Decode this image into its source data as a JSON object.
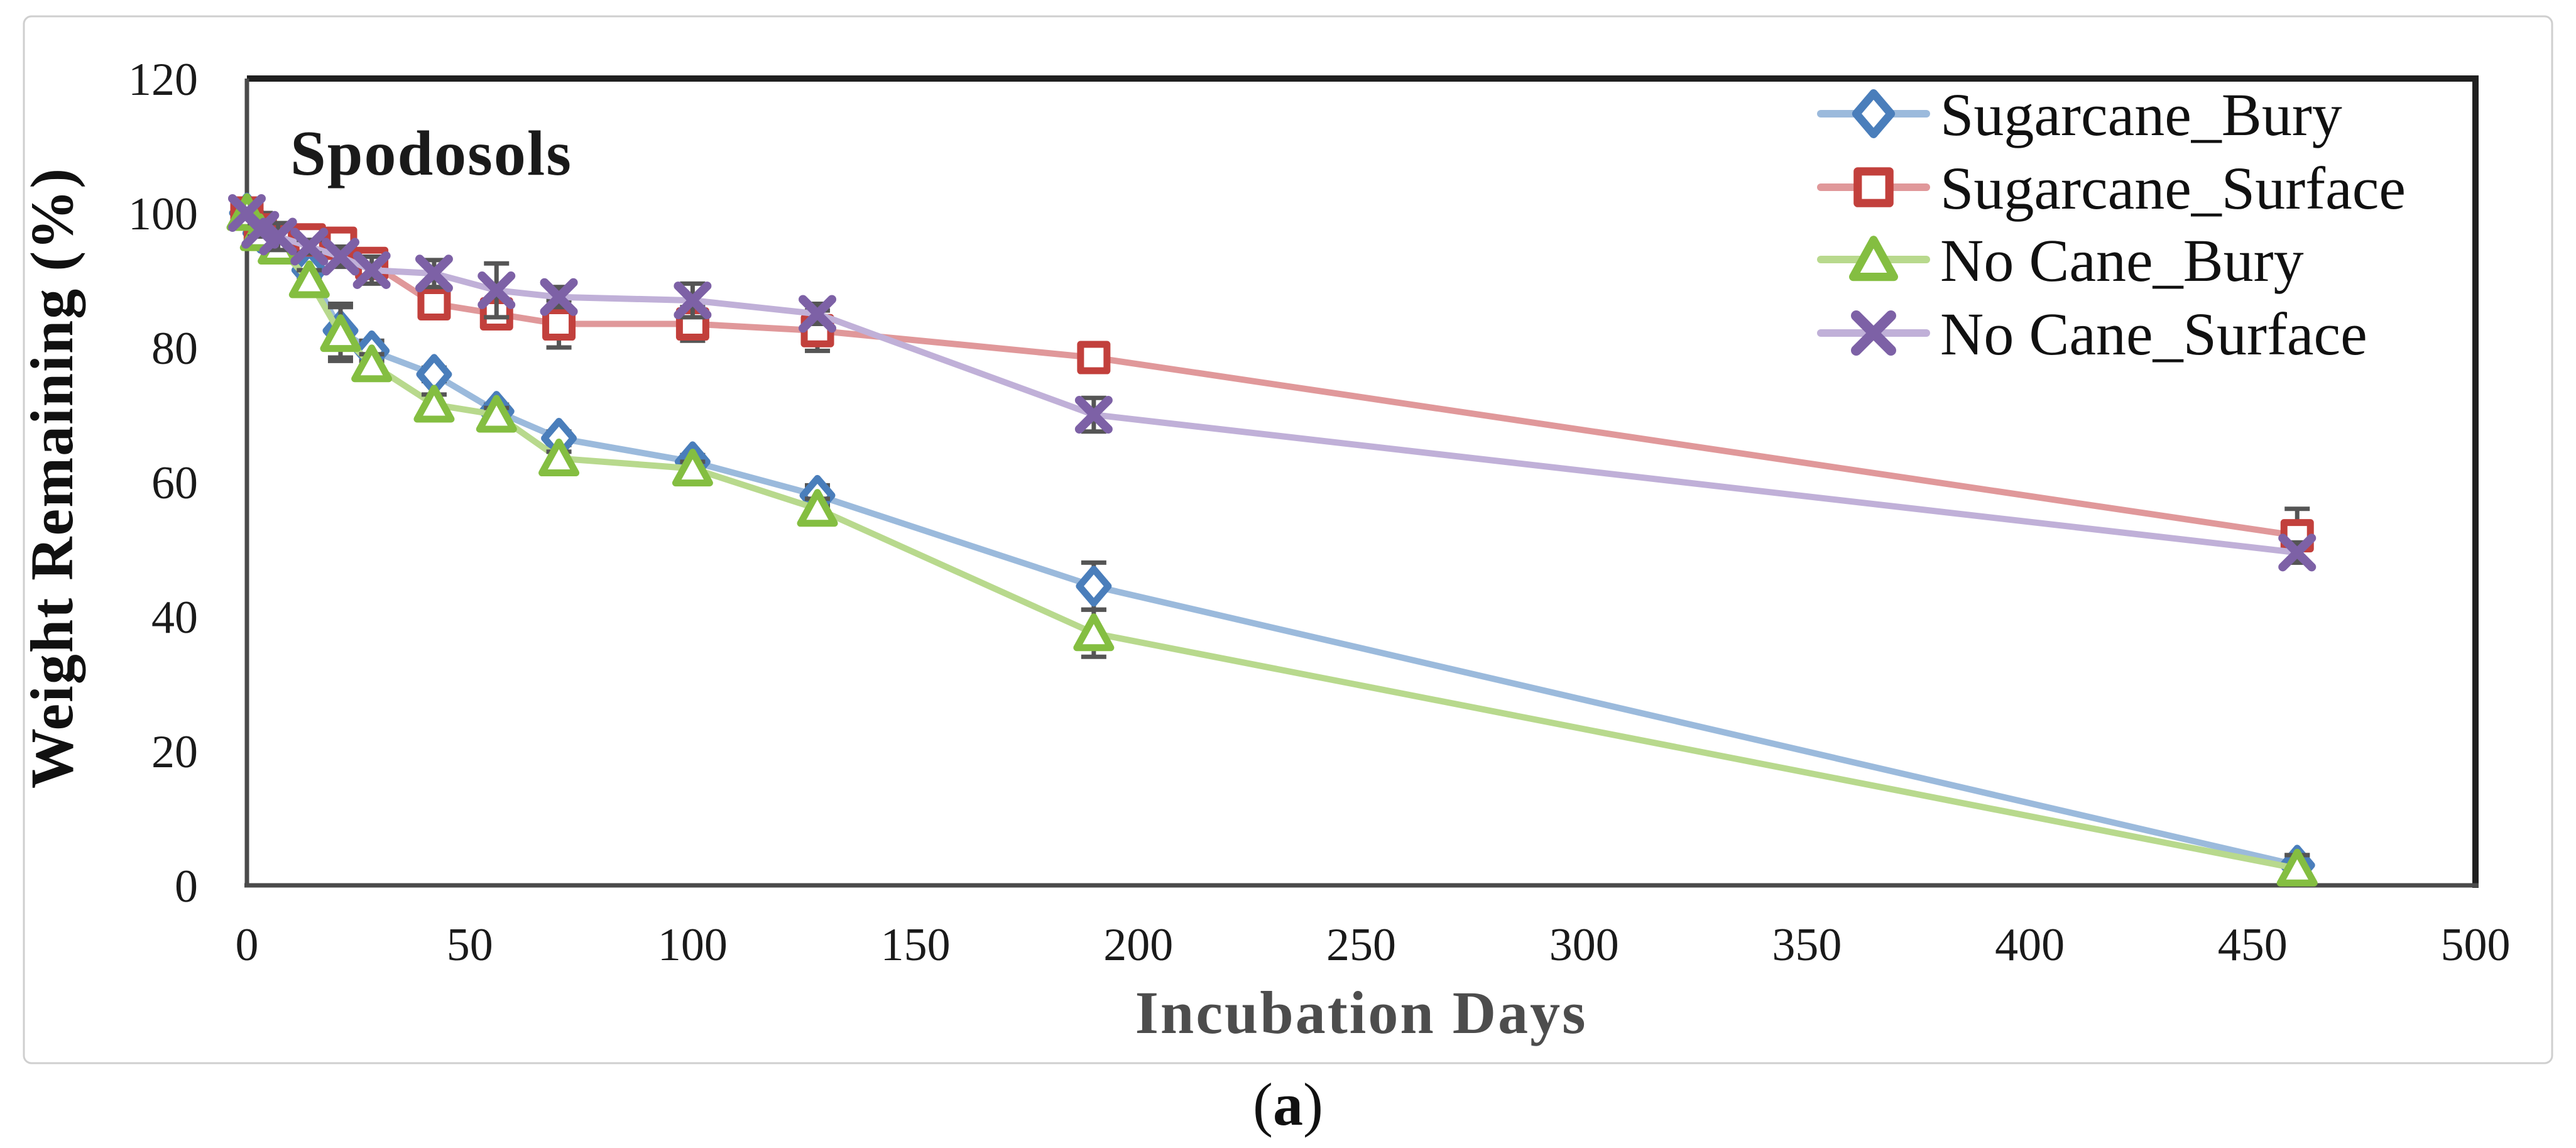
{
  "figure": {
    "panel_label": {
      "open": "(",
      "letter": "a",
      "close": ")"
    }
  },
  "chart_data": {
    "type": "line",
    "title": "Spodosols",
    "xlabel": "Incubation Days",
    "ylabel": "Weight Remaining (%)",
    "xlim": [
      0,
      500
    ],
    "ylim": [
      0,
      120
    ],
    "x_ticks": [
      0,
      50,
      100,
      150,
      200,
      250,
      300,
      350,
      400,
      450,
      500
    ],
    "y_ticks": [
      0,
      20,
      40,
      60,
      80,
      100,
      120
    ],
    "grid": "off",
    "legend_position": "top-right-inside",
    "x": [
      0,
      3,
      7,
      14,
      21,
      28,
      42,
      56,
      70,
      100,
      128,
      190,
      460
    ],
    "series": [
      {
        "name": "Sugarcane_Bury",
        "marker": "diamond",
        "color": "#4A7EBB",
        "line_color": "#9BBADC",
        "values": [
          100,
          97,
          95.5,
          91.5,
          82.5,
          79.5,
          76,
          70.5,
          66.5,
          63,
          58,
          44.5,
          3
        ],
        "errors": [
          0.5,
          1,
          1,
          1,
          4,
          1.5,
          1,
          1,
          1,
          1,
          1.5,
          3.5,
          1.5
        ]
      },
      {
        "name": "Sugarcane_Surface",
        "marker": "square",
        "color": "#C2403C",
        "line_color": "#E0989A",
        "values": [
          100,
          97.5,
          96,
          96,
          95.5,
          92.5,
          86.5,
          85,
          83.5,
          83.5,
          82.5,
          78.5,
          52
        ],
        "errors": [
          0.5,
          2.5,
          1,
          1,
          1,
          1.5,
          2,
          1.5,
          3.5,
          2.5,
          3,
          1.5,
          4
        ]
      },
      {
        "name": "No Cane_Bury",
        "marker": "triangle",
        "color": "#84BE41",
        "line_color": "#B8D98D",
        "values": [
          100,
          97,
          95,
          90,
          82,
          77.5,
          71.5,
          70,
          63.5,
          62,
          56,
          37.5,
          2.5
        ],
        "errors": [
          0.5,
          1,
          1,
          1.5,
          4,
          1.5,
          1.5,
          1,
          1,
          1,
          1.5,
          3.5,
          2
        ]
      },
      {
        "name": "No Cane_Surface",
        "marker": "x",
        "color": "#7D61A6",
        "line_color": "#C0B0D8",
        "values": [
          100,
          97.5,
          96.5,
          95,
          93.5,
          91.5,
          91,
          88.5,
          87.5,
          87,
          85,
          70,
          49.5
        ],
        "errors": [
          0.5,
          1,
          2,
          1,
          1.5,
          2,
          2,
          4,
          1.5,
          2.5,
          1.5,
          2.5,
          1.5
        ]
      }
    ],
    "error_bar_color": "#555555",
    "axis_color": "#4a4a4a",
    "border_color": "#1f1f1f",
    "frame_color": "#cfcfcf",
    "tick_color": "#1a1a1a"
  }
}
